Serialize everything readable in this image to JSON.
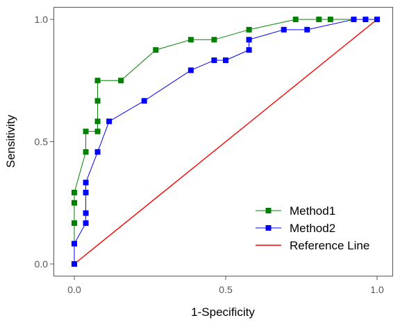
{
  "chart_data": {
    "type": "line",
    "title": "",
    "xlabel": "1-Specificity",
    "ylabel": "Sensitivity",
    "xlim": [
      0,
      1
    ],
    "ylim": [
      0,
      1
    ],
    "x_ticks": [
      0.0,
      0.5,
      1.0
    ],
    "x_tick_labels": [
      "0.0",
      "0.5",
      "1.0"
    ],
    "y_ticks": [
      0.0,
      0.5,
      1.0
    ],
    "y_tick_labels": [
      "0.0",
      "0.5",
      "1.0"
    ],
    "grid": false,
    "legend_position": "bottom-right",
    "series": [
      {
        "name": "Method1",
        "color": "#008000",
        "marker": "square",
        "points": [
          [
            0.0,
            0.0
          ],
          [
            0.0,
            0.167
          ],
          [
            0.0,
            0.25
          ],
          [
            0.0,
            0.292
          ],
          [
            0.038,
            0.458
          ],
          [
            0.038,
            0.542
          ],
          [
            0.077,
            0.542
          ],
          [
            0.077,
            0.583
          ],
          [
            0.077,
            0.667
          ],
          [
            0.077,
            0.75
          ],
          [
            0.154,
            0.75
          ],
          [
            0.269,
            0.875
          ],
          [
            0.385,
            0.917
          ],
          [
            0.462,
            0.917
          ],
          [
            0.577,
            0.958
          ],
          [
            0.731,
            1.0
          ],
          [
            0.808,
            1.0
          ],
          [
            0.846,
            1.0
          ],
          [
            0.923,
            1.0
          ],
          [
            0.962,
            1.0
          ],
          [
            1.0,
            1.0
          ]
        ]
      },
      {
        "name": "Method2",
        "color": "#0000ff",
        "marker": "square",
        "points": [
          [
            0.0,
            0.0
          ],
          [
            0.0,
            0.083
          ],
          [
            0.038,
            0.167
          ],
          [
            0.038,
            0.208
          ],
          [
            0.038,
            0.292
          ],
          [
            0.038,
            0.333
          ],
          [
            0.077,
            0.458
          ],
          [
            0.115,
            0.583
          ],
          [
            0.231,
            0.667
          ],
          [
            0.385,
            0.792
          ],
          [
            0.462,
            0.833
          ],
          [
            0.5,
            0.833
          ],
          [
            0.577,
            0.875
          ],
          [
            0.577,
            0.917
          ],
          [
            0.692,
            0.958
          ],
          [
            0.769,
            0.958
          ],
          [
            0.923,
            1.0
          ],
          [
            0.962,
            1.0
          ],
          [
            1.0,
            1.0
          ]
        ]
      },
      {
        "name": "Reference Line",
        "color": "#ff0000",
        "marker": "none",
        "points": [
          [
            0.0,
            0.0
          ],
          [
            1.0,
            1.0
          ]
        ]
      }
    ]
  }
}
